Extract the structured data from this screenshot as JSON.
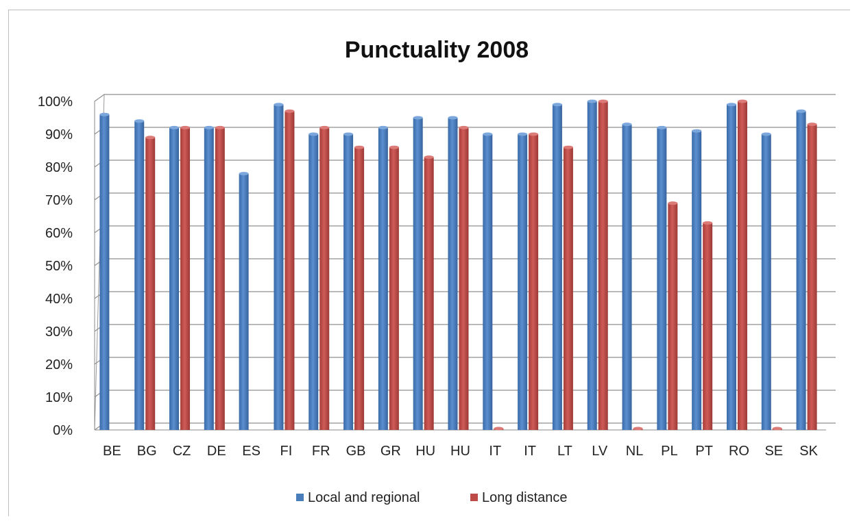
{
  "chart_data": {
    "type": "bar",
    "title": "Punctuality 2008",
    "xlabel": "",
    "ylabel": "",
    "ylim": [
      0,
      1
    ],
    "y_ticks": [
      "0%",
      "10%",
      "20%",
      "30%",
      "40%",
      "50%",
      "60%",
      "70%",
      "80%",
      "90%",
      "100%"
    ],
    "categories": [
      "BE",
      "BG",
      "CZ",
      "DE",
      "ES",
      "FI",
      "FR",
      "GB",
      "GR",
      "HU",
      "HU",
      "IT",
      "IT",
      "LT",
      "LV",
      "NL",
      "PL",
      "PT",
      "RO",
      "SE",
      "SK"
    ],
    "series": [
      {
        "name": "Local and regional",
        "color": "#4a7ebb",
        "values": [
          0.96,
          0.94,
          0.92,
          0.92,
          0.78,
          0.99,
          0.9,
          0.9,
          0.92,
          0.95,
          0.95,
          0.9,
          0.9,
          0.99,
          1.0,
          0.93,
          0.92,
          0.91,
          0.99,
          0.9,
          0.97
        ]
      },
      {
        "name": "Long distance",
        "color": "#be4b48",
        "values": [
          null,
          0.89,
          0.92,
          0.92,
          null,
          0.97,
          0.92,
          0.86,
          0.86,
          0.83,
          0.92,
          0.0,
          0.9,
          0.86,
          1.0,
          0.0,
          0.69,
          0.63,
          1.0,
          0.0,
          0.93
        ]
      }
    ],
    "grid": true,
    "legend": "bottom"
  }
}
